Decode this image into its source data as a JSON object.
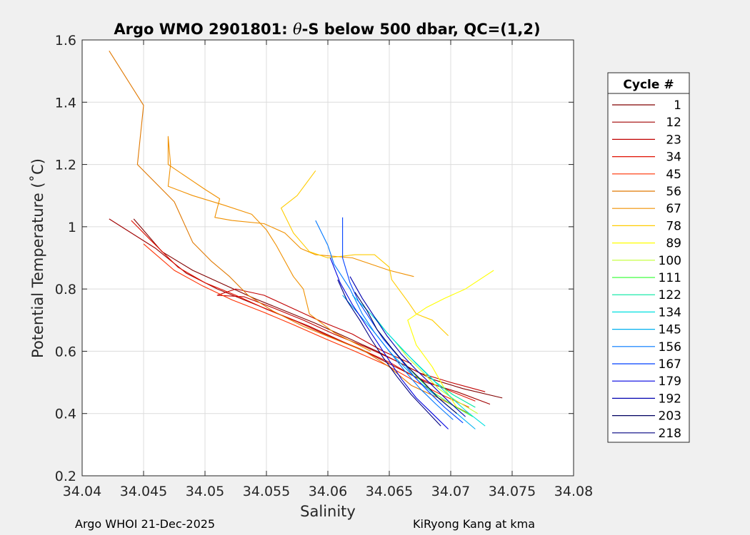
{
  "chart_data": {
    "type": "line",
    "title_prefix": "Argo WMO 2901801: ",
    "title_theta": "θ",
    "title_suffix": "-S below 500 dbar,  QC=(1,2)",
    "xlabel": "Salinity",
    "ylabel": "Potential Temperature (˚C)",
    "xlim": [
      34.04,
      34.08
    ],
    "ylim": [
      0.2,
      1.6
    ],
    "xticks": [
      34.04,
      34.045,
      34.05,
      34.055,
      34.06,
      34.065,
      34.07,
      34.075,
      34.08
    ],
    "xtick_labels": [
      "34.04",
      "34.045",
      "34.05",
      "34.055",
      "34.06",
      "34.065",
      "34.07",
      "34.075",
      "34.08"
    ],
    "yticks": [
      0.2,
      0.4,
      0.6,
      0.8,
      1.0,
      1.2,
      1.4,
      1.6
    ],
    "ytick_labels": [
      "0.2",
      "0.4",
      "0.6",
      "0.8",
      "1",
      "1.2",
      "1.4",
      "1.6"
    ],
    "grid": true,
    "legend_title": "Cycle #",
    "legend_position": "right",
    "series": [
      {
        "name": "1",
        "color": "#800000",
        "points": [
          [
            34.0742,
            0.45
          ],
          [
            34.071,
            0.48
          ],
          [
            34.0685,
            0.51
          ],
          [
            34.0665,
            0.55
          ],
          [
            34.064,
            0.6
          ],
          [
            34.0615,
            0.645
          ],
          [
            34.059,
            0.69
          ],
          [
            34.0565,
            0.73
          ],
          [
            34.054,
            0.77
          ],
          [
            34.0515,
            0.815
          ],
          [
            34.049,
            0.86
          ],
          [
            34.0465,
            0.92
          ],
          [
            34.0442,
            1.025
          ]
        ]
      },
      {
        "name": "12",
        "color": "#a00000",
        "points": [
          [
            34.0732,
            0.43
          ],
          [
            34.0705,
            0.47
          ],
          [
            34.068,
            0.5
          ],
          [
            34.066,
            0.54
          ],
          [
            34.0635,
            0.59
          ],
          [
            34.061,
            0.635
          ],
          [
            34.0585,
            0.68
          ],
          [
            34.056,
            0.72
          ],
          [
            34.0535,
            0.76
          ],
          [
            34.051,
            0.8
          ],
          [
            34.0485,
            0.85
          ],
          [
            34.046,
            0.93
          ],
          [
            34.0422,
            1.025
          ]
        ]
      },
      {
        "name": "23",
        "color": "#c00000",
        "points": [
          [
            34.0728,
            0.47
          ],
          [
            34.07,
            0.5
          ],
          [
            34.0675,
            0.53
          ],
          [
            34.0655,
            0.57
          ],
          [
            34.063,
            0.615
          ],
          [
            34.0605,
            0.655
          ],
          [
            34.058,
            0.7
          ],
          [
            34.0555,
            0.74
          ],
          [
            34.0532,
            0.775
          ],
          [
            34.051,
            0.78
          ],
          [
            34.0525,
            0.8
          ],
          [
            34.0548,
            0.78
          ],
          [
            34.057,
            0.74
          ],
          [
            34.0595,
            0.695
          ],
          [
            34.062,
            0.655
          ],
          [
            34.0645,
            0.6
          ],
          [
            34.0668,
            0.56
          ]
        ]
      },
      {
        "name": "34",
        "color": "#e01000",
        "points": [
          [
            34.072,
            0.44
          ],
          [
            34.0695,
            0.48
          ],
          [
            34.067,
            0.52
          ],
          [
            34.065,
            0.565
          ],
          [
            34.0625,
            0.61
          ],
          [
            34.06,
            0.65
          ],
          [
            34.0575,
            0.695
          ],
          [
            34.055,
            0.735
          ],
          [
            34.0525,
            0.78
          ],
          [
            34.05,
            0.82
          ],
          [
            34.0478,
            0.87
          ],
          [
            34.0455,
            0.96
          ],
          [
            34.044,
            1.02
          ]
        ]
      },
      {
        "name": "45",
        "color": "#ff3000",
        "points": [
          [
            34.0715,
            0.42
          ],
          [
            34.069,
            0.465
          ],
          [
            34.0668,
            0.51
          ],
          [
            34.0648,
            0.555
          ],
          [
            34.0622,
            0.6
          ],
          [
            34.0598,
            0.64
          ],
          [
            34.0572,
            0.685
          ],
          [
            34.0548,
            0.725
          ],
          [
            34.0522,
            0.765
          ],
          [
            34.0498,
            0.81
          ],
          [
            34.0475,
            0.86
          ],
          [
            34.045,
            0.945
          ]
        ]
      },
      {
        "name": "56",
        "color": "#e07800",
        "points": [
          [
            34.0715,
            0.4
          ],
          [
            34.069,
            0.45
          ],
          [
            34.0668,
            0.49
          ],
          [
            34.065,
            0.55
          ],
          [
            34.063,
            0.6
          ],
          [
            34.0605,
            0.64
          ],
          [
            34.058,
            0.68
          ],
          [
            34.0555,
            0.73
          ],
          [
            34.0535,
            0.78
          ],
          [
            34.052,
            0.84
          ],
          [
            34.0505,
            0.89
          ],
          [
            34.049,
            0.95
          ],
          [
            34.0475,
            1.08
          ],
          [
            34.0445,
            1.2
          ],
          [
            34.045,
            1.39
          ],
          [
            34.0422,
            1.565
          ]
        ]
      },
      {
        "name": "67",
        "color": "#f09000",
        "points": [
          [
            34.0635,
            0.6
          ],
          [
            34.0605,
            0.66
          ],
          [
            34.0585,
            0.72
          ],
          [
            34.058,
            0.8
          ],
          [
            34.0572,
            0.84
          ],
          [
            34.0565,
            0.89
          ],
          [
            34.0558,
            0.94
          ],
          [
            34.055,
            0.99
          ],
          [
            34.0538,
            1.04
          ],
          [
            34.0515,
            1.07
          ],
          [
            34.049,
            1.1
          ],
          [
            34.047,
            1.13
          ],
          [
            34.0472,
            1.2
          ],
          [
            34.047,
            1.29
          ],
          [
            34.047,
            1.2
          ],
          [
            34.05,
            1.12
          ],
          [
            34.0512,
            1.09
          ],
          [
            34.0508,
            1.03
          ],
          [
            34.0522,
            1.02
          ],
          [
            34.0548,
            1.01
          ],
          [
            34.0565,
            0.98
          ],
          [
            34.0578,
            0.93
          ],
          [
            34.059,
            0.91
          ],
          [
            34.062,
            0.9
          ],
          [
            34.065,
            0.86
          ],
          [
            34.067,
            0.84
          ]
        ]
      },
      {
        "name": "78",
        "color": "#ffcc00",
        "points": [
          [
            34.0698,
            0.65
          ],
          [
            34.0685,
            0.7
          ],
          [
            34.0672,
            0.72
          ],
          [
            34.0665,
            0.76
          ],
          [
            34.0652,
            0.83
          ],
          [
            34.065,
            0.87
          ],
          [
            34.0638,
            0.91
          ],
          [
            34.0622,
            0.91
          ],
          [
            34.06,
            0.9
          ],
          [
            34.0585,
            0.92
          ],
          [
            34.0572,
            0.98
          ],
          [
            34.0562,
            1.06
          ],
          [
            34.0575,
            1.1
          ],
          [
            34.059,
            1.18
          ]
        ]
      },
      {
        "name": "89",
        "color": "#ffff00",
        "points": [
          [
            34.0705,
            0.42
          ],
          [
            34.0695,
            0.48
          ],
          [
            34.0685,
            0.55
          ],
          [
            34.0672,
            0.62
          ],
          [
            34.0665,
            0.7
          ],
          [
            34.068,
            0.74
          ],
          [
            34.0695,
            0.77
          ],
          [
            34.0712,
            0.8
          ],
          [
            34.0735,
            0.86
          ]
        ]
      },
      {
        "name": "100",
        "color": "#c0ff30",
        "points": [
          [
            34.0722,
            0.4
          ],
          [
            34.0705,
            0.44
          ],
          [
            34.069,
            0.48
          ],
          [
            34.0678,
            0.53
          ],
          [
            34.0665,
            0.58
          ],
          [
            34.0655,
            0.63
          ]
        ]
      },
      {
        "name": "111",
        "color": "#40ff40",
        "points": [
          [
            34.0718,
            0.39
          ],
          [
            34.07,
            0.43
          ],
          [
            34.0685,
            0.47
          ],
          [
            34.0672,
            0.52
          ],
          [
            34.066,
            0.57
          ],
          [
            34.0652,
            0.61
          ]
        ]
      },
      {
        "name": "122",
        "color": "#00e8a0",
        "points": [
          [
            34.072,
            0.42
          ],
          [
            34.0702,
            0.46
          ],
          [
            34.0688,
            0.5
          ],
          [
            34.0675,
            0.55
          ],
          [
            34.0662,
            0.6
          ],
          [
            34.0648,
            0.66
          ],
          [
            34.0638,
            0.71
          ]
        ]
      },
      {
        "name": "134",
        "color": "#00e0e0",
        "points": [
          [
            34.0728,
            0.36
          ],
          [
            34.0712,
            0.41
          ],
          [
            34.0698,
            0.46
          ],
          [
            34.0685,
            0.51
          ],
          [
            34.0672,
            0.56
          ],
          [
            34.066,
            0.61
          ],
          [
            34.0648,
            0.66
          ],
          [
            34.0635,
            0.72
          ],
          [
            34.062,
            0.78
          ]
        ]
      },
      {
        "name": "145",
        "color": "#00b0f0",
        "points": [
          [
            34.072,
            0.35
          ],
          [
            34.0705,
            0.4
          ],
          [
            34.069,
            0.45
          ],
          [
            34.0675,
            0.5
          ],
          [
            34.0662,
            0.55
          ],
          [
            34.065,
            0.6
          ],
          [
            34.0638,
            0.66
          ],
          [
            34.0625,
            0.72
          ],
          [
            34.0612,
            0.78
          ]
        ]
      },
      {
        "name": "156",
        "color": "#0078ff",
        "points": [
          [
            34.0702,
            0.38
          ],
          [
            34.0688,
            0.43
          ],
          [
            34.0675,
            0.48
          ],
          [
            34.0662,
            0.54
          ],
          [
            34.065,
            0.6
          ],
          [
            34.0638,
            0.66
          ],
          [
            34.0628,
            0.72
          ],
          [
            34.0618,
            0.8
          ],
          [
            34.0605,
            0.88
          ],
          [
            34.06,
            0.94
          ],
          [
            34.059,
            1.02
          ]
        ]
      },
      {
        "name": "167",
        "color": "#0040ff",
        "points": [
          [
            34.071,
            0.37
          ],
          [
            34.0695,
            0.42
          ],
          [
            34.0682,
            0.47
          ],
          [
            34.067,
            0.52
          ],
          [
            34.0658,
            0.58
          ],
          [
            34.0645,
            0.64
          ],
          [
            34.0635,
            0.7
          ],
          [
            34.0625,
            0.76
          ],
          [
            34.0618,
            0.82
          ],
          [
            34.0612,
            0.9
          ],
          [
            34.0612,
            1.03
          ]
        ]
      },
      {
        "name": "179",
        "color": "#0000e0",
        "points": [
          [
            34.0698,
            0.35
          ],
          [
            34.0685,
            0.4
          ],
          [
            34.0672,
            0.45
          ],
          [
            34.066,
            0.51
          ],
          [
            34.065,
            0.57
          ],
          [
            34.064,
            0.63
          ],
          [
            34.063,
            0.69
          ],
          [
            34.062,
            0.75
          ],
          [
            34.061,
            0.82
          ],
          [
            34.0602,
            0.9
          ]
        ]
      },
      {
        "name": "192",
        "color": "#0000b0",
        "points": [
          [
            34.0712,
            0.39
          ],
          [
            34.0698,
            0.44
          ],
          [
            34.0685,
            0.49
          ],
          [
            34.0672,
            0.54
          ],
          [
            34.066,
            0.59
          ],
          [
            34.0648,
            0.65
          ],
          [
            34.0638,
            0.71
          ],
          [
            34.0628,
            0.77
          ],
          [
            34.0618,
            0.84
          ]
        ]
      },
      {
        "name": "203",
        "color": "#000060",
        "points": [
          [
            34.0705,
            0.4
          ],
          [
            34.069,
            0.45
          ],
          [
            34.0678,
            0.5
          ],
          [
            34.0665,
            0.55
          ],
          [
            34.0652,
            0.61
          ],
          [
            34.064,
            0.67
          ],
          [
            34.0632,
            0.73
          ],
          [
            34.0622,
            0.79
          ]
        ]
      },
      {
        "name": "218",
        "color": "#000080",
        "points": [
          [
            34.0692,
            0.36
          ],
          [
            34.068,
            0.41
          ],
          [
            34.0668,
            0.46
          ],
          [
            34.0656,
            0.52
          ],
          [
            34.0645,
            0.58
          ],
          [
            34.0635,
            0.64
          ],
          [
            34.0626,
            0.7
          ],
          [
            34.0616,
            0.76
          ],
          [
            34.0608,
            0.83
          ]
        ]
      }
    ]
  },
  "footer": {
    "left": "Argo WHOI 21-Dec-2025",
    "right": "KiRyong Kang at kma"
  }
}
